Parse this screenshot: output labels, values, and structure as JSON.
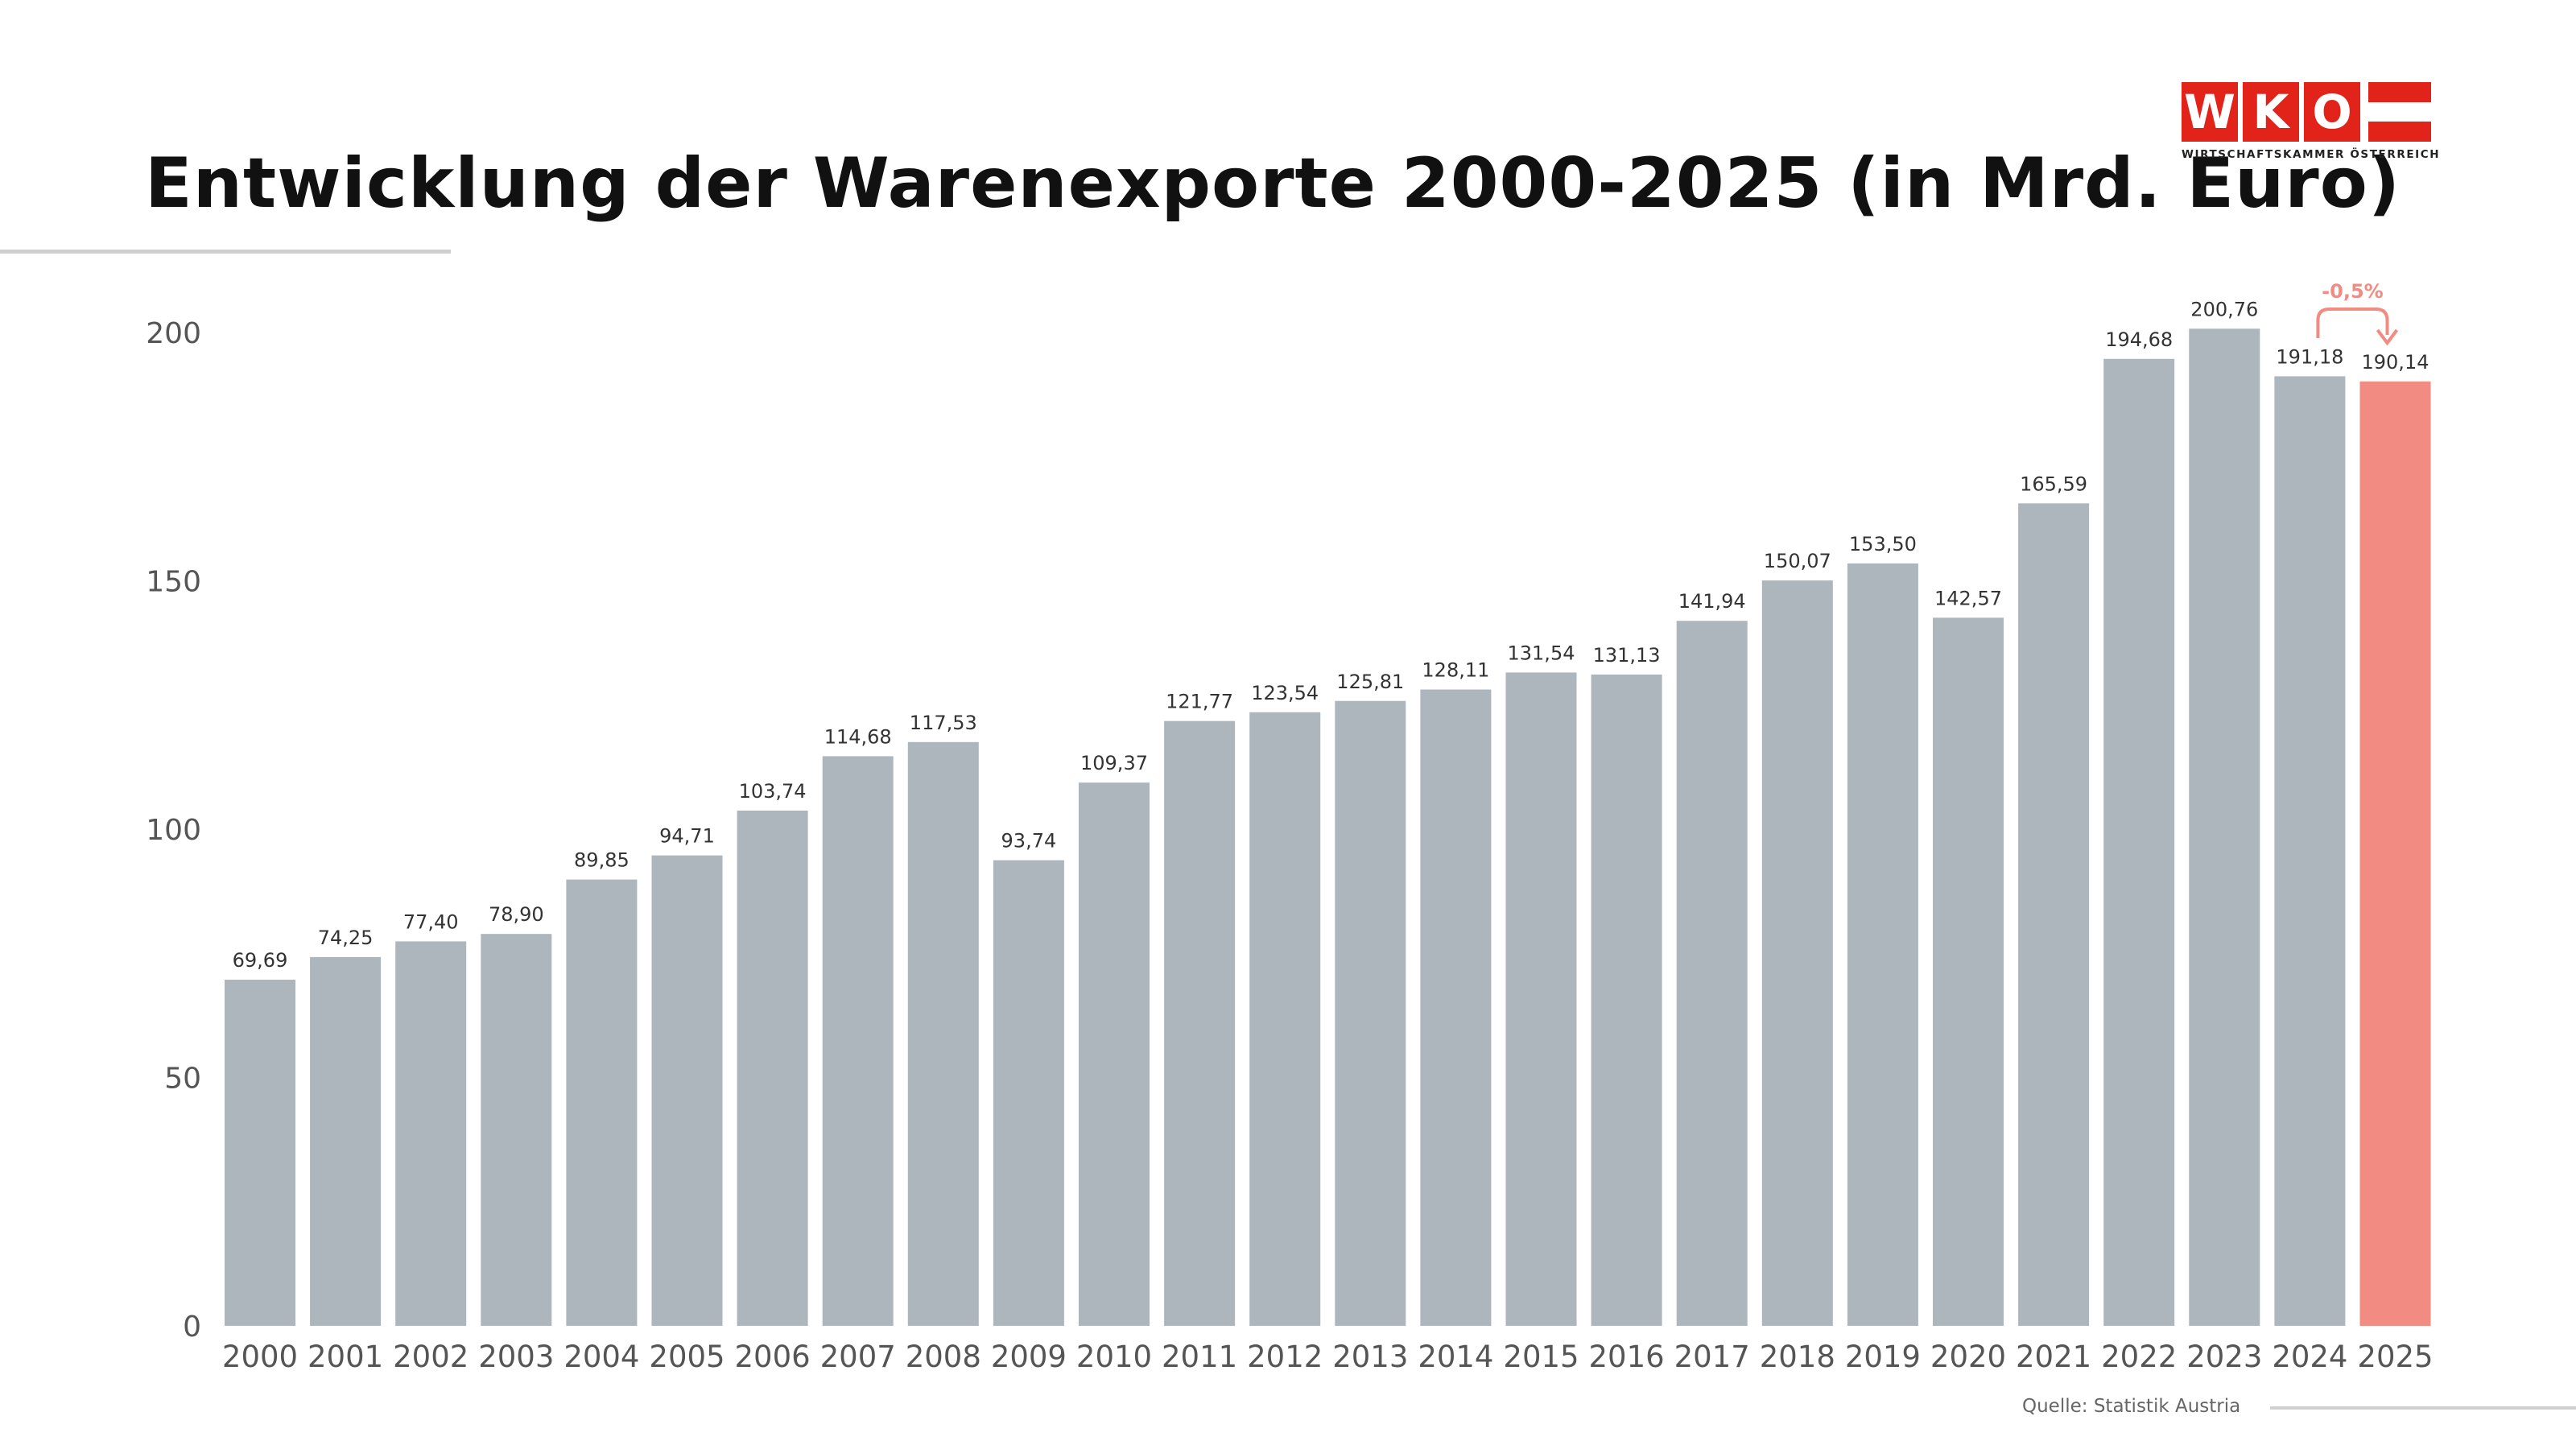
{
  "logo": {
    "letters": [
      "W",
      "K",
      "O"
    ],
    "subtitle": "WIRTSCHAFTSKAMMER ÖSTERREICH",
    "brand_color": "#e2231a"
  },
  "colors": {
    "bar_default": "#adb5bd",
    "bar_highlight": "#f28b82",
    "change_annotation": "#f28b82"
  },
  "source": "Quelle: Statistik Austria",
  "chart_data": {
    "type": "bar",
    "title": "Entwicklung der Warenexporte 2000-2025 (in Mrd. Euro)",
    "categories": [
      "2000",
      "2001",
      "2002",
      "2003",
      "2004",
      "2005",
      "2006",
      "2007",
      "2008",
      "2009",
      "2010",
      "2011",
      "2012",
      "2013",
      "2014",
      "2015",
      "2016",
      "2017",
      "2018",
      "2019",
      "2020",
      "2021",
      "2022",
      "2023",
      "2024",
      "2025"
    ],
    "values": [
      69.69,
      74.25,
      77.4,
      78.9,
      89.85,
      94.71,
      103.74,
      114.68,
      117.53,
      93.74,
      109.37,
      121.77,
      123.54,
      125.81,
      128.11,
      131.54,
      131.13,
      141.94,
      150.07,
      153.5,
      142.57,
      165.59,
      194.68,
      200.76,
      191.18,
      190.14
    ],
    "value_labels": [
      "69,69",
      "74,25",
      "77,40",
      "78,90",
      "89,85",
      "94,71",
      "103,74",
      "114,68",
      "117,53",
      "93,74",
      "109,37",
      "121,77",
      "123,54",
      "125,81",
      "128,11",
      "131,54",
      "131,13",
      "141,94",
      "150,07",
      "153,50",
      "142,57",
      "165,59",
      "194,68",
      "200,76",
      "191,18",
      "190,14"
    ],
    "highlight_category": "2025",
    "ylim": [
      0,
      200
    ],
    "yticks": [
      "0",
      "50",
      "100",
      "150",
      "200"
    ],
    "ytick_values": [
      0,
      50,
      100,
      150,
      200
    ],
    "grid": false,
    "annotation": {
      "from": "2024",
      "to": "2025",
      "text": "-0,5%"
    }
  }
}
